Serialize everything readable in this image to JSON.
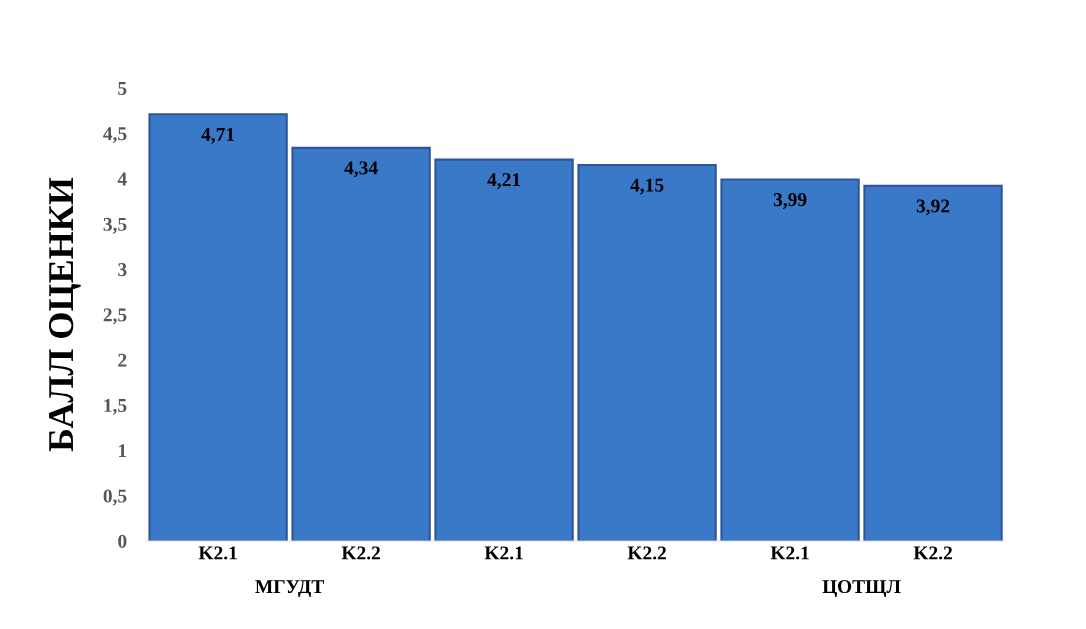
{
  "chart_data": {
    "type": "bar",
    "ylabel": "БАЛЛ ОЦЕНКИ",
    "categories": [
      "K2.1",
      "K2.2",
      "K2.1",
      "K2.2",
      "K2.1",
      "K2.2"
    ],
    "values": [
      4.71,
      4.34,
      4.21,
      4.15,
      3.99,
      3.92
    ],
    "value_labels": [
      "4,71",
      "4,34",
      "4,21",
      "4,15",
      "3,99",
      "3,92"
    ],
    "color": "#3a78c8",
    "ylim": [
      0,
      5
    ],
    "yticks": [
      0,
      {
        "value": 0.5,
        "label": "0,5"
      },
      1,
      {
        "value": 1.5,
        "label": "1,5"
      },
      2,
      {
        "value": 2.5,
        "label": "2,5"
      },
      3,
      {
        "value": 3.5,
        "label": "3,5"
      },
      4,
      {
        "value": 4.5,
        "label": "4,5"
      },
      5
    ],
    "annotations": [
      "МГУДТ",
      null,
      "ЦОТЩЛ"
    ],
    "grid": false,
    "legend": false
  }
}
